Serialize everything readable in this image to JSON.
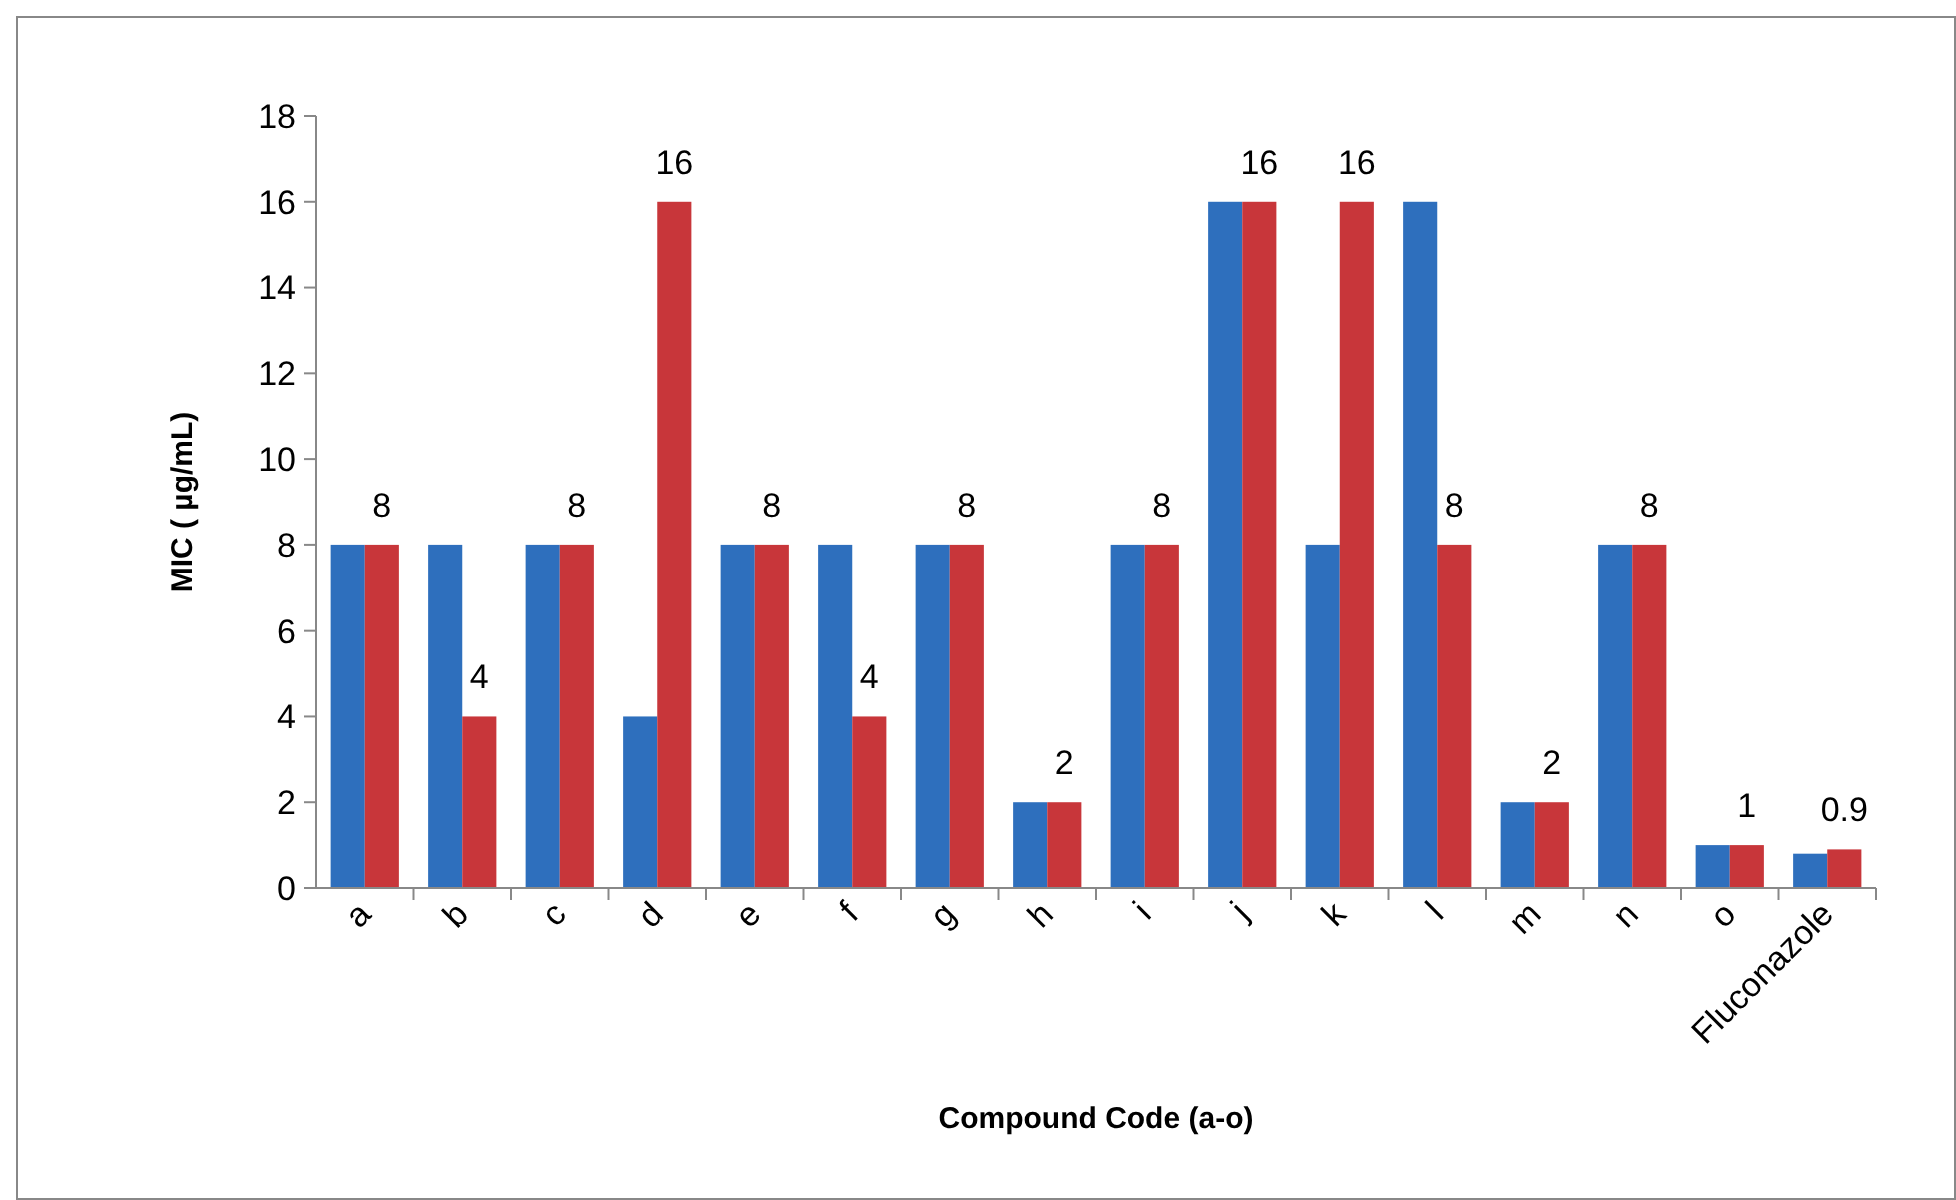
{
  "chart_data": {
    "type": "bar",
    "xlabel": "Compound Code (a-o)",
    "ylabel": "MIC ( µg/mL)",
    "categories": [
      "a",
      "b",
      "c",
      "d",
      "e",
      "f",
      "g",
      "h",
      "i",
      "j",
      "k",
      "l",
      "m",
      "n",
      "o",
      "Fluconazole"
    ],
    "series": [
      {
        "color": "#2e6fbd",
        "values": [
          8,
          8,
          8,
          4,
          8,
          8,
          8,
          2,
          8,
          16,
          8,
          16,
          2,
          8,
          1,
          0.8
        ]
      },
      {
        "color": "#c8363a",
        "values": [
          8,
          4,
          8,
          16,
          8,
          4,
          8,
          2,
          8,
          16,
          16,
          8,
          2,
          8,
          1,
          0.9
        ],
        "value_labels": [
          "8",
          "4",
          "8",
          "16",
          "8",
          "4",
          "8",
          "2",
          "8",
          "16",
          "16",
          "8",
          "2",
          "8",
          "1",
          "0.9"
        ]
      }
    ],
    "ylim": [
      0,
      18
    ],
    "yticks": [
      0,
      2,
      4,
      6,
      8,
      10,
      12,
      14,
      16,
      18
    ],
    "grid": false
  }
}
